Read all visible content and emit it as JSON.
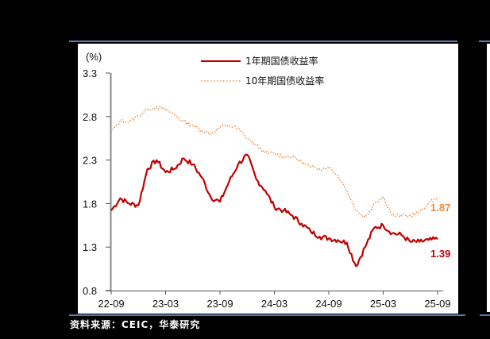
{
  "source_note": "资料来源：CEIC，华泰研究",
  "chart_data": {
    "type": "line",
    "title": "",
    "ylabel": "(%)",
    "xlabel": "",
    "ylim": [
      0.8,
      3.3
    ],
    "yticks": [
      "3.3",
      "2.8",
      "2.3",
      "1.8",
      "1.3",
      "0.8"
    ],
    "xticks": [
      "22-09",
      "23-03",
      "23-09",
      "24-03",
      "24-09",
      "25-03",
      "25-09"
    ],
    "legend_position": "top-center",
    "grid": false,
    "series": [
      {
        "name": "1年期国债收益率",
        "color": "#c00000",
        "style": "solid",
        "end_label": "1.39",
        "points": [
          [
            "22-09",
            1.72
          ],
          [
            "22-10",
            1.86
          ],
          [
            "22-11",
            1.8
          ],
          [
            "22-12",
            1.78
          ],
          [
            "23-01",
            2.2
          ],
          [
            "23-02",
            2.3
          ],
          [
            "23-03",
            2.16
          ],
          [
            "23-04",
            2.2
          ],
          [
            "23-05",
            2.32
          ],
          [
            "23-06",
            2.25
          ],
          [
            "23-07",
            2.1
          ],
          [
            "23-08",
            1.87
          ],
          [
            "23-09",
            1.82
          ],
          [
            "23-10",
            2.05
          ],
          [
            "23-11",
            2.25
          ],
          [
            "23-12",
            2.36
          ],
          [
            "24-01",
            2.08
          ],
          [
            "24-02",
            1.95
          ],
          [
            "24-03",
            1.76
          ],
          [
            "24-04",
            1.72
          ],
          [
            "24-05",
            1.66
          ],
          [
            "24-06",
            1.57
          ],
          [
            "24-07",
            1.48
          ],
          [
            "24-08",
            1.42
          ],
          [
            "24-09",
            1.4
          ],
          [
            "24-10",
            1.38
          ],
          [
            "24-11",
            1.35
          ],
          [
            "24-12",
            1.08
          ],
          [
            "25-01",
            1.3
          ],
          [
            "25-02",
            1.52
          ],
          [
            "25-03",
            1.55
          ],
          [
            "25-04",
            1.46
          ],
          [
            "25-05",
            1.44
          ],
          [
            "25-06",
            1.36
          ],
          [
            "25-07",
            1.36
          ],
          [
            "25-08",
            1.38
          ],
          [
            "25-09",
            1.39
          ]
        ]
      },
      {
        "name": "10年期国债收益率",
        "color": "#f08a3c",
        "style": "dotted",
        "end_label": "1.87",
        "points": [
          [
            "22-09",
            2.62
          ],
          [
            "22-10",
            2.75
          ],
          [
            "22-11",
            2.74
          ],
          [
            "22-12",
            2.81
          ],
          [
            "23-01",
            2.88
          ],
          [
            "23-02",
            2.91
          ],
          [
            "23-03",
            2.88
          ],
          [
            "23-04",
            2.82
          ],
          [
            "23-05",
            2.74
          ],
          [
            "23-06",
            2.7
          ],
          [
            "23-07",
            2.64
          ],
          [
            "23-08",
            2.6
          ],
          [
            "23-09",
            2.68
          ],
          [
            "23-10",
            2.7
          ],
          [
            "23-11",
            2.66
          ],
          [
            "23-12",
            2.55
          ],
          [
            "24-01",
            2.47
          ],
          [
            "24-02",
            2.38
          ],
          [
            "24-03",
            2.38
          ],
          [
            "24-04",
            2.34
          ],
          [
            "24-05",
            2.34
          ],
          [
            "24-06",
            2.28
          ],
          [
            "24-07",
            2.22
          ],
          [
            "24-08",
            2.2
          ],
          [
            "24-09",
            2.22
          ],
          [
            "24-10",
            2.12
          ],
          [
            "24-11",
            1.95
          ],
          [
            "24-12",
            1.72
          ],
          [
            "25-01",
            1.64
          ],
          [
            "25-02",
            1.8
          ],
          [
            "25-03",
            1.88
          ],
          [
            "25-04",
            1.66
          ],
          [
            "25-05",
            1.66
          ],
          [
            "25-06",
            1.66
          ],
          [
            "25-07",
            1.7
          ],
          [
            "25-08",
            1.8
          ],
          [
            "25-09",
            1.87
          ]
        ]
      }
    ]
  }
}
